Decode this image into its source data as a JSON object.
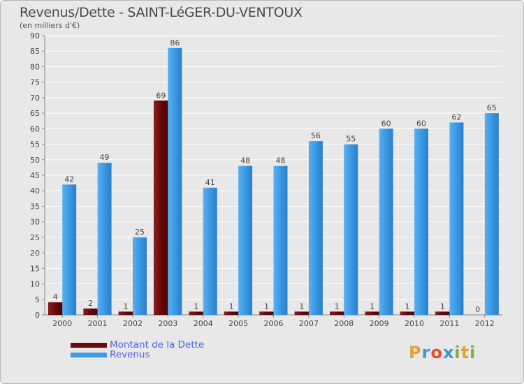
{
  "title": "Revenus/Dette - SAINT-LéGER-DU-VENTOUX",
  "subtitle": "(en milliers d'€)",
  "legend": {
    "dette": "Montant de la Dette",
    "revenus": "Revenus"
  },
  "logo": {
    "letters": [
      "P",
      "r",
      "o",
      "x",
      "i",
      "t",
      "i"
    ],
    "colors": [
      "#e8a030",
      "#3a9ad0",
      "#e05030",
      "#3a9ad0",
      "#80b040",
      "#e8a030",
      "#80b040"
    ]
  },
  "colors": {
    "dette": "#6b0a0a",
    "revenus": "#3e9ae6",
    "background": "#e8e8e8",
    "grid": "#ffffff"
  },
  "chart_data": {
    "type": "bar",
    "title": "Revenus/Dette - SAINT-LéGER-DU-VENTOUX",
    "ylabel": "(en milliers d'€)",
    "xlabel": "",
    "ylim": [
      0,
      90
    ],
    "yticks": [
      0,
      5,
      10,
      15,
      20,
      25,
      30,
      35,
      40,
      45,
      50,
      55,
      60,
      65,
      70,
      75,
      80,
      85,
      90
    ],
    "categories": [
      "2000",
      "2001",
      "2002",
      "2003",
      "2004",
      "2005",
      "2006",
      "2007",
      "2008",
      "2009",
      "2010",
      "2011",
      "2012"
    ],
    "series": [
      {
        "name": "Montant de la Dette",
        "values": [
          4,
          2,
          1,
          69,
          1,
          1,
          1,
          1,
          1,
          1,
          1,
          1,
          0
        ]
      },
      {
        "name": "Revenus",
        "values": [
          42,
          49,
          25,
          86,
          41,
          48,
          48,
          56,
          55,
          60,
          60,
          62,
          65
        ]
      }
    ],
    "grid": true,
    "legend_position": "bottom-left"
  }
}
